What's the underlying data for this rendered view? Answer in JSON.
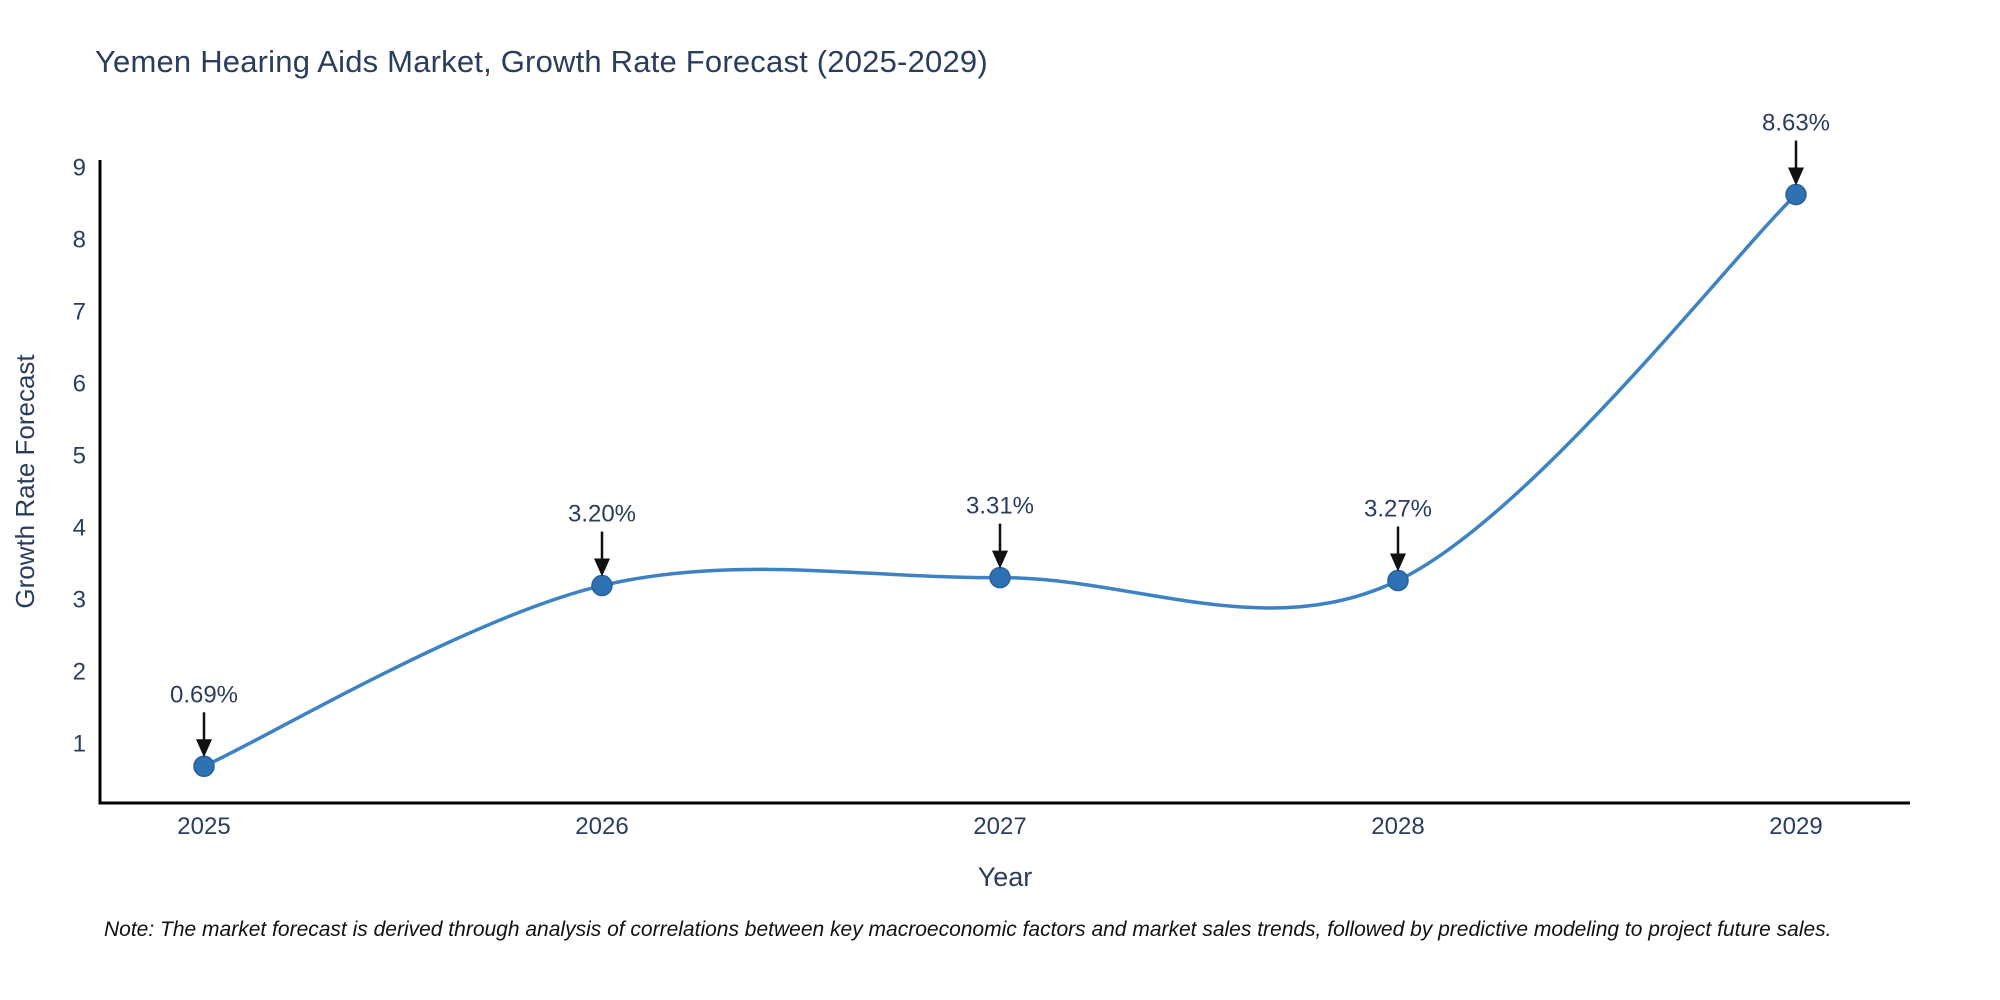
{
  "chart_data": {
    "type": "line",
    "line_shape": "spline",
    "title": "Yemen Hearing Aids Market, Growth Rate Forecast (2025-2029)",
    "xlabel": "Year",
    "ylabel": "Growth Rate Forecast",
    "categories": [
      "2025",
      "2026",
      "2027",
      "2028",
      "2029"
    ],
    "values": [
      0.69,
      3.2,
      3.31,
      3.27,
      8.63
    ],
    "point_labels": [
      "0.69%",
      "3.20%",
      "3.31%",
      "3.27%",
      "8.63%"
    ],
    "yticks": [
      1,
      2,
      3,
      4,
      5,
      6,
      7,
      8,
      9
    ],
    "ylim": [
      0.18,
      9.11
    ],
    "grid": false,
    "legend_position": "none",
    "annotation_style": "text-with-down-arrow",
    "colors": {
      "line": "#3d83c4",
      "marker": "#2e72b4",
      "marker_edge": "#27639c",
      "text": "#2b3d5c",
      "axis": "#000000",
      "arrow": "#111111",
      "background": "#ffffff",
      "note_text": "#111111"
    },
    "note": "Note: The market forecast is derived through analysis of correlations between key macroeconomic factors and market sales trends, followed by predictive modeling to project future sales."
  }
}
